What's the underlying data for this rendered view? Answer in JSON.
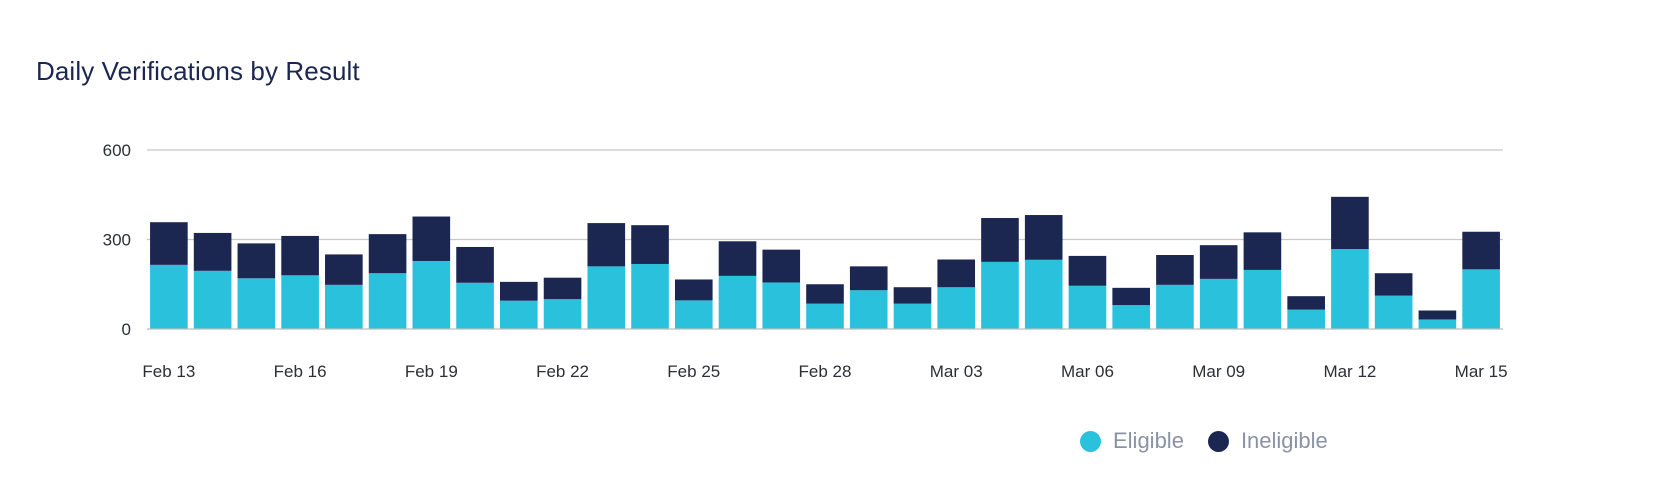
{
  "title": "Daily Verifications by Result",
  "colors": {
    "eligible": "#29c1dc",
    "ineligible": "#1b2651",
    "grid": "#c8c8c8",
    "axis": "#bdbdbd"
  },
  "legend": [
    {
      "name": "Eligible",
      "color": "#29c1dc"
    },
    {
      "name": "Ineligible",
      "color": "#1b2651"
    }
  ],
  "chart_data": {
    "type": "bar",
    "stacked": true,
    "title": "Daily Verifications by Result",
    "xlabel": "",
    "ylabel": "",
    "ylim": [
      0,
      600
    ],
    "yticks": [
      0,
      300,
      600
    ],
    "grid": true,
    "legend_position": "bottom-right",
    "categories": [
      "Feb 13",
      "Feb 14",
      "Feb 15",
      "Feb 16",
      "Feb 17",
      "Feb 18",
      "Feb 19",
      "Feb 20",
      "Feb 21",
      "Feb 22",
      "Feb 23",
      "Feb 24",
      "Feb 25",
      "Feb 26",
      "Feb 27",
      "Feb 28",
      "Mar 01",
      "Mar 02",
      "Mar 03",
      "Mar 04",
      "Mar 05",
      "Mar 06",
      "Mar 07",
      "Mar 08",
      "Mar 09",
      "Mar 10",
      "Mar 11",
      "Mar 12",
      "Mar 13",
      "Mar 14",
      "Mar 15"
    ],
    "xtick_labels": [
      "Feb 13",
      "",
      "",
      "Feb 16",
      "",
      "",
      "Feb 19",
      "",
      "",
      "Feb 22",
      "",
      "",
      "Feb 25",
      "",
      "",
      "Feb 28",
      "",
      "",
      "Mar 03",
      "",
      "",
      "Mar 06",
      "",
      "",
      "Mar 09",
      "",
      "",
      "Mar 12",
      "",
      "",
      "Mar 15"
    ],
    "series": [
      {
        "name": "Eligible",
        "values": [
          215,
          195,
          170,
          180,
          148,
          187,
          228,
          155,
          95,
          100,
          210,
          218,
          96,
          178,
          156,
          85,
          130,
          85,
          140,
          225,
          232,
          145,
          80,
          148,
          168,
          198,
          65,
          268,
          112,
          32,
          200
        ]
      },
      {
        "name": "Ineligible",
        "values": [
          143,
          127,
          117,
          132,
          102,
          131,
          149,
          120,
          63,
          72,
          145,
          130,
          70,
          116,
          110,
          65,
          80,
          55,
          93,
          147,
          150,
          100,
          58,
          100,
          113,
          126,
          45,
          175,
          75,
          30,
          126
        ]
      }
    ]
  }
}
